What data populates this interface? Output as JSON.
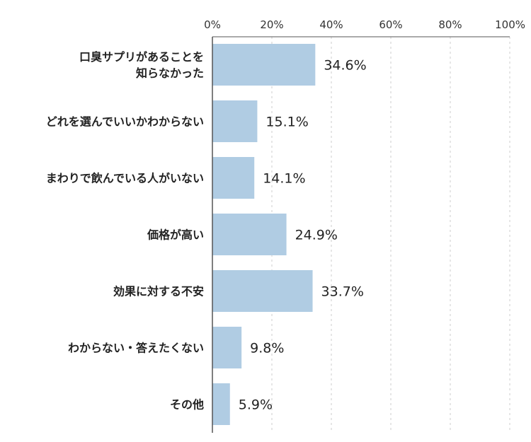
{
  "chart_data": {
    "type": "bar",
    "orientation": "horizontal",
    "title": "",
    "xlabel": "",
    "ylabel": "",
    "xlim": [
      0,
      100
    ],
    "x_ticks": [
      "0%",
      "20%",
      "40%",
      "60%",
      "80%",
      "100%"
    ],
    "grid": "vertical dashed",
    "categories": [
      [
        "口臭サプリがあることを",
        "知らなかった"
      ],
      [
        "どれを選んでいいかわからない"
      ],
      [
        "まわりで飲んでいる人がいない"
      ],
      [
        "価格が高い"
      ],
      [
        "効果に対する不安"
      ],
      [
        "わからない・答えたくない"
      ],
      [
        "その他"
      ]
    ],
    "values": [
      34.6,
      15.1,
      14.1,
      24.9,
      33.7,
      9.8,
      5.9
    ],
    "value_labels": [
      "34.6%",
      "15.1%",
      "14.1%",
      "24.9%",
      "33.7%",
      "9.8%",
      "5.9%"
    ],
    "bar_color": "#b0cce3",
    "axis_color": "#555555",
    "grid_color": "#cccccc"
  }
}
